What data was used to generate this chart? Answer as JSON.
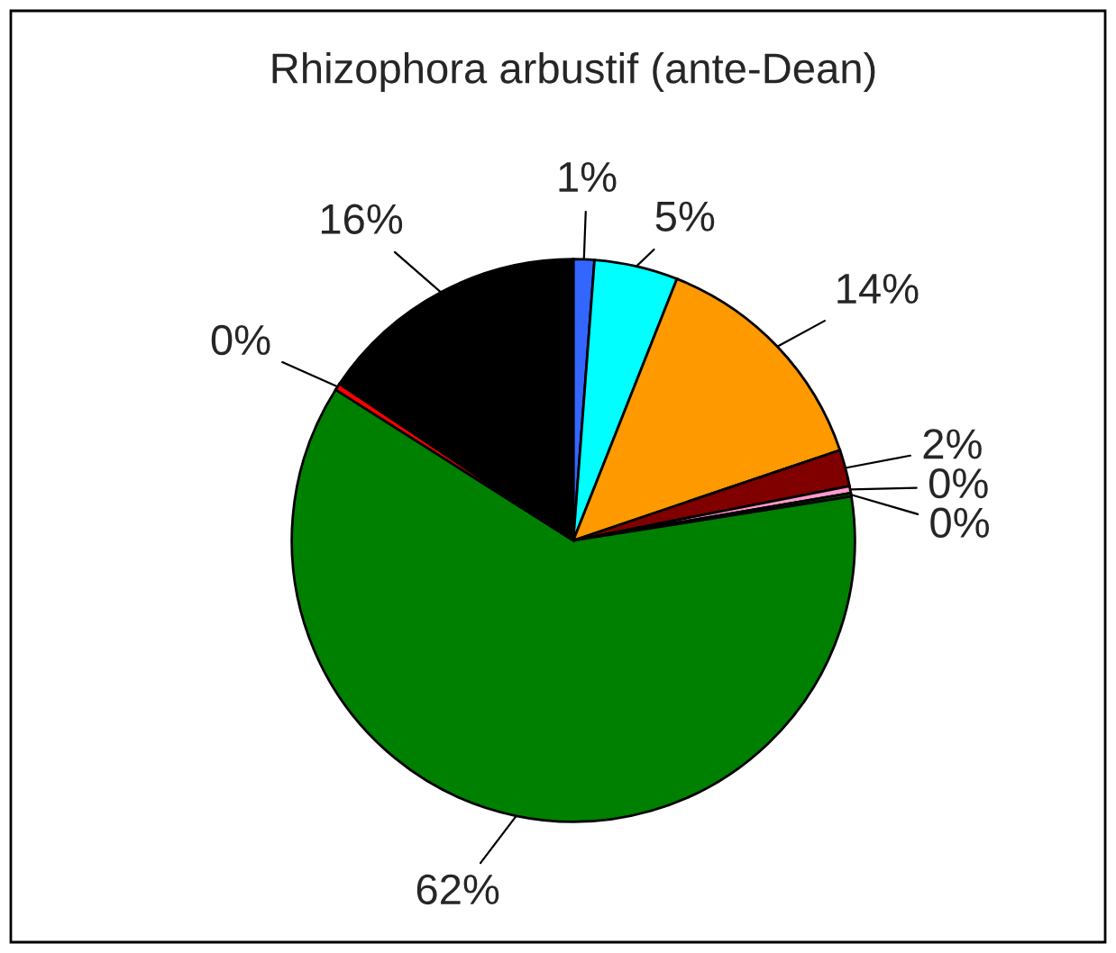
{
  "chart_data": {
    "type": "pie",
    "title": "Rhizophora arbustif (ante-Dean)",
    "categories": [
      null,
      null,
      null,
      null,
      null,
      null,
      null,
      null,
      null
    ],
    "values": [
      1.2,
      4.8,
      13.8,
      2.1,
      0.4,
      0.2,
      61.5,
      0.4,
      15.6
    ],
    "value_labels": [
      "1%",
      "5%",
      "14%",
      "2%",
      "0%",
      "0%",
      "62%",
      "0%",
      "16%"
    ],
    "colors": [
      "#3366ff",
      "#00ffff",
      "#ff9900",
      "#800000",
      "#ff99cc",
      "#006400",
      "#008000",
      "#ff0000",
      "#000000"
    ],
    "legend": false
  }
}
